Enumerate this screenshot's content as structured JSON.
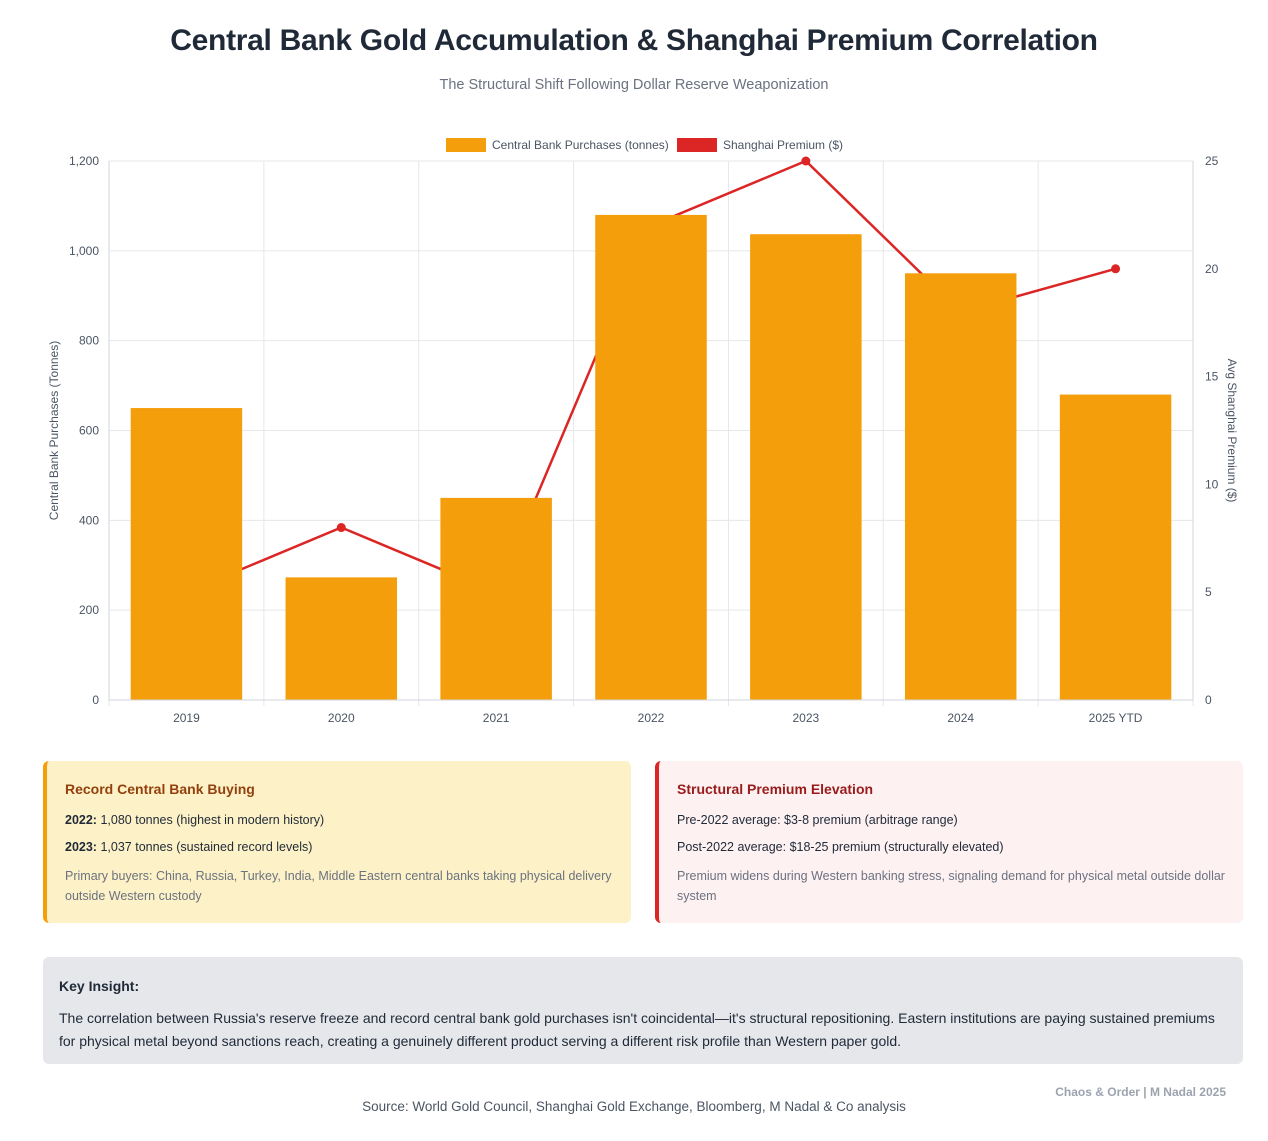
{
  "header": {
    "title": "Central Bank Gold Accumulation & Shanghai Premium Correlation",
    "subtitle": "The Structural Shift Following Dollar Reserve Weaponization"
  },
  "chart_data": {
    "type": "bar",
    "categories": [
      "2019",
      "2020",
      "2021",
      "2022",
      "2023",
      "2024",
      "2025 YTD"
    ],
    "series": [
      {
        "name": "Central Bank Purchases (tonnes)",
        "type": "bar",
        "axis": "left",
        "color": "#f59e0b",
        "values": [
          650,
          273,
          450,
          1080,
          1037,
          950,
          680
        ]
      },
      {
        "name": "Shanghai Premium ($)",
        "type": "line",
        "axis": "right",
        "color": "#dc2626",
        "values": [
          5,
          8,
          5,
          22,
          25,
          18,
          20
        ]
      }
    ],
    "ylabel": "Central Bank Purchases (Tonnes)",
    "y2label": "Avg Shanghai Premium ($)",
    "ylim": [
      0,
      1200
    ],
    "y2lim": [
      0,
      25
    ],
    "yticks": [
      "0",
      "200",
      "400",
      "600",
      "800",
      "1,000",
      "1,200"
    ],
    "y2ticks": [
      "0",
      "5",
      "10",
      "15",
      "20",
      "25"
    ],
    "grid": true,
    "legend": "top-center"
  },
  "cards": {
    "buying": {
      "title": "Record Central Bank Buying",
      "line1_label": "2022:",
      "line1_text": "1,080 tonnes (highest in modern history)",
      "line2_label": "2023:",
      "line2_text": "1,037 tonnes (sustained record levels)",
      "note": "Primary buyers: China, Russia, Turkey, India, Middle Eastern central banks taking physical delivery outside Western custody"
    },
    "premium": {
      "title": "Structural Premium Elevation",
      "line1": "Pre-2022 average: $3-8 premium (arbitrage range)",
      "line2": "Post-2022 average: $18-25 premium (structurally elevated)",
      "note": "Premium widens during Western banking stress, signaling demand for physical metal outside dollar system"
    }
  },
  "insight": {
    "label": "Key Insight:",
    "text": "The correlation between Russia's reserve freeze and record central bank gold purchases isn't coincidental—it's structural repositioning. Eastern institutions are paying sustained premiums for physical metal beyond sanctions reach, creating a genuinely different product serving a different risk profile than Western paper gold."
  },
  "footer": {
    "credit": "Chaos & Order | M Nadal 2025",
    "source": "Source: World Gold Council, Shanghai Gold Exchange, Bloomberg, M Nadal & Co analysis"
  }
}
